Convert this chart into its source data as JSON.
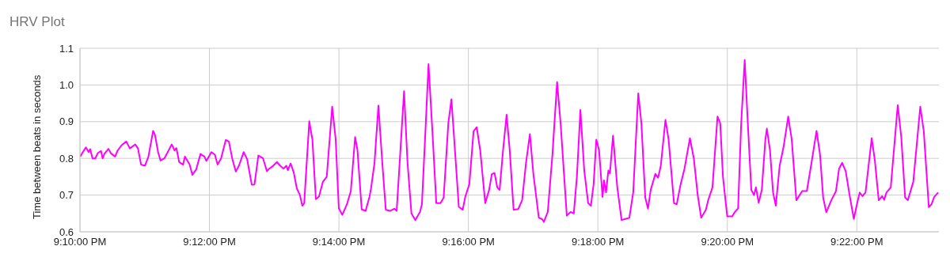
{
  "chart_data": {
    "type": "line",
    "title": "HRV Plot",
    "ylabel": "Time between beats in seconds",
    "x": [
      21.1667,
      21.1682,
      21.1689,
      21.1693,
      21.1699,
      21.1706,
      21.1713,
      21.1721,
      21.1725,
      21.173,
      21.174,
      21.1747,
      21.1757,
      21.1764,
      21.1774,
      21.1786,
      21.1795,
      21.1809,
      21.1816,
      21.1824,
      21.1834,
      21.1843,
      21.1855,
      21.186,
      21.1868,
      21.1874,
      21.1884,
      21.1894,
      21.1903,
      21.191,
      21.1915,
      21.1922,
      21.1932,
      21.1937,
      21.1949,
      21.1956,
      21.1966,
      21.1977,
      21.1987,
      21.1992,
      21.2005,
      21.2014,
      21.2021,
      21.203,
      21.2042,
      21.205,
      21.2059,
      21.2068,
      21.2076,
      21.2088,
      21.2097,
      21.2109,
      21.2116,
      21.2126,
      21.2138,
      21.2148,
      21.2154,
      21.2162,
      21.2174,
      21.2182,
      21.2191,
      21.2198,
      21.2202,
      21.2209,
      21.2217,
      21.2225,
      21.2233,
      21.2239,
      21.2244,
      21.2257,
      21.2265,
      21.2274,
      21.2282,
      21.2292,
      21.2302,
      21.2316,
      21.2325,
      21.2333,
      21.2342,
      21.2354,
      21.2364,
      21.2375,
      21.2381,
      21.2392,
      21.2402,
      21.2412,
      21.2416,
      21.2425,
      21.2435,
      21.2445,
      21.2454,
      21.2465,
      21.2476,
      21.2482,
      21.2493,
      21.2501,
      21.251,
      21.252,
      21.253,
      21.2542,
      21.2547,
      21.2557,
      21.2564,
      21.2574,
      21.2584,
      21.2595,
      21.2603,
      21.2615,
      21.2623,
      21.2632,
      21.2642,
      21.2652,
      21.2659,
      21.2669,
      21.268,
      21.2688,
      21.2697,
      21.271,
      21.272,
      21.2727,
      21.2734,
      21.2741,
      21.2747,
      21.2756,
      21.2765,
      21.2773,
      21.2783,
      21.2795,
      21.2805,
      21.2815,
      21.2825,
      21.2834,
      21.2848,
      21.2856,
      21.2861,
      21.2871,
      21.2883,
      21.2895,
      21.2904,
      21.292,
      21.293,
      21.2938,
      21.2946,
      21.2955,
      21.2965,
      21.2975,
      21.2982,
      21.2989,
      21.2996,
      21.3003,
      21.3012,
      21.3016,
      21.3021,
      21.3027,
      21.3031,
      21.3039,
      21.305,
      21.3061,
      21.3071,
      21.3081,
      21.3091,
      21.3104,
      21.3112,
      21.3122,
      21.3129,
      21.3136,
      21.3148,
      21.3155,
      21.3162,
      21.3174,
      21.3182,
      21.3196,
      21.3203,
      21.3213,
      21.3223,
      21.3237,
      21.3247,
      21.3257,
      21.3266,
      21.3278,
      21.3284,
      21.3295,
      21.3308,
      21.3315,
      21.3322,
      21.3333,
      21.3346,
      21.3352,
      21.3361,
      21.3369,
      21.3378,
      21.3386,
      21.3395,
      21.3402,
      21.3407,
      21.3414,
      21.3422,
      21.3431,
      21.3435,
      21.3443,
      21.3451,
      21.3458,
      21.3468,
      21.3478,
      21.349,
      21.3499,
      21.3511,
      21.3526,
      21.3538,
      21.355,
      21.3563,
      21.3572,
      21.358,
      21.3588,
      21.3601,
      21.3613,
      21.3621,
      21.3629,
      21.3638,
      21.3648,
      21.3659,
      21.3665,
      21.3674,
      21.3681,
      21.3689,
      21.3705,
      21.3713,
      21.3723,
      21.3732,
      21.3737,
      21.3743,
      21.3754,
      21.3772,
      21.3781,
      21.3791,
      21.3798,
      21.3812,
      21.383,
      21.3839,
      21.3852,
      21.3859,
      21.3866,
      21.3876
    ],
    "series": [
      {
        "color": "#ff00ff",
        "values": [
          0.805,
          0.83,
          0.817,
          0.825,
          0.8,
          0.8,
          0.815,
          0.82,
          0.8,
          0.813,
          0.826,
          0.813,
          0.805,
          0.822,
          0.836,
          0.846,
          0.827,
          0.838,
          0.827,
          0.783,
          0.78,
          0.805,
          0.875,
          0.863,
          0.816,
          0.794,
          0.8,
          0.82,
          0.838,
          0.822,
          0.828,
          0.79,
          0.783,
          0.805,
          0.783,
          0.755,
          0.77,
          0.812,
          0.805,
          0.793,
          0.817,
          0.81,
          0.783,
          0.8,
          0.85,
          0.846,
          0.798,
          0.764,
          0.78,
          0.817,
          0.798,
          0.728,
          0.729,
          0.808,
          0.8,
          0.765,
          0.772,
          0.778,
          0.79,
          0.78,
          0.772,
          0.78,
          0.768,
          0.786,
          0.762,
          0.718,
          0.7,
          0.671,
          0.678,
          0.901,
          0.852,
          0.689,
          0.696,
          0.736,
          0.75,
          0.941,
          0.852,
          0.664,
          0.646,
          0.675,
          0.711,
          0.858,
          0.823,
          0.661,
          0.657,
          0.695,
          0.718,
          0.788,
          0.944,
          0.788,
          0.66,
          0.657,
          0.663,
          0.657,
          0.845,
          0.983,
          0.788,
          0.65,
          0.632,
          0.654,
          0.675,
          0.896,
          1.057,
          0.874,
          0.678,
          0.678,
          0.693,
          0.896,
          0.961,
          0.823,
          0.668,
          0.66,
          0.697,
          0.729,
          0.874,
          0.885,
          0.823,
          0.678,
          0.714,
          0.757,
          0.76,
          0.721,
          0.714,
          0.823,
          0.919,
          0.823,
          0.66,
          0.662,
          0.686,
          0.788,
          0.866,
          0.757,
          0.638,
          0.635,
          0.627,
          0.654,
          0.81,
          1.008,
          0.896,
          0.644,
          0.654,
          0.65,
          0.75,
          0.932,
          0.766,
          0.678,
          0.671,
          0.729,
          0.851,
          0.823,
          0.695,
          0.74,
          0.707,
          0.767,
          0.759,
          0.862,
          0.721,
          0.632,
          0.635,
          0.638,
          0.707,
          0.977,
          0.896,
          0.693,
          0.663,
          0.714,
          0.758,
          0.747,
          0.78,
          0.905,
          0.852,
          0.678,
          0.675,
          0.729,
          0.772,
          0.855,
          0.8,
          0.7,
          0.638,
          0.66,
          0.686,
          0.721,
          0.914,
          0.896,
          0.75,
          0.642,
          0.642,
          0.653,
          0.664,
          0.896,
          1.068,
          0.896,
          0.714,
          0.7,
          0.721,
          0.679,
          0.714,
          0.849,
          0.881,
          0.823,
          0.707,
          0.671,
          0.78,
          0.831,
          0.914,
          0.852,
          0.686,
          0.711,
          0.711,
          0.788,
          0.875,
          0.81,
          0.693,
          0.653,
          0.686,
          0.711,
          0.772,
          0.788,
          0.765,
          0.7,
          0.635,
          0.666,
          0.707,
          0.697,
          0.707,
          0.855,
          0.795,
          0.686,
          0.697,
          0.687,
          0.707,
          0.721,
          0.945,
          0.859,
          0.693,
          0.686,
          0.736,
          0.941,
          0.874,
          0.667,
          0.675,
          0.695,
          0.707
        ]
      }
    ],
    "xlim": [
      21.166667,
      21.3878
    ],
    "xticks": [
      {
        "value": 21.166667,
        "label": "9:10:00 PM"
      },
      {
        "value": 21.2,
        "label": "9:12:00 PM"
      },
      {
        "value": 21.233333,
        "label": "9:14:00 PM"
      },
      {
        "value": 21.266667,
        "label": "9:16:00 PM"
      },
      {
        "value": 21.3,
        "label": "9:18:00 PM"
      },
      {
        "value": 21.333333,
        "label": "9:20:00 PM"
      },
      {
        "value": 21.366667,
        "label": "9:22:00 PM"
      }
    ],
    "ylim": [
      0.6,
      1.1
    ],
    "yticks": [
      0.6,
      0.7,
      0.8,
      0.9,
      {
        "value": 1,
        "label": "1.0"
      },
      1.1
    ],
    "grid": true,
    "legend": false,
    "marker": "none",
    "line_style": "solid"
  }
}
